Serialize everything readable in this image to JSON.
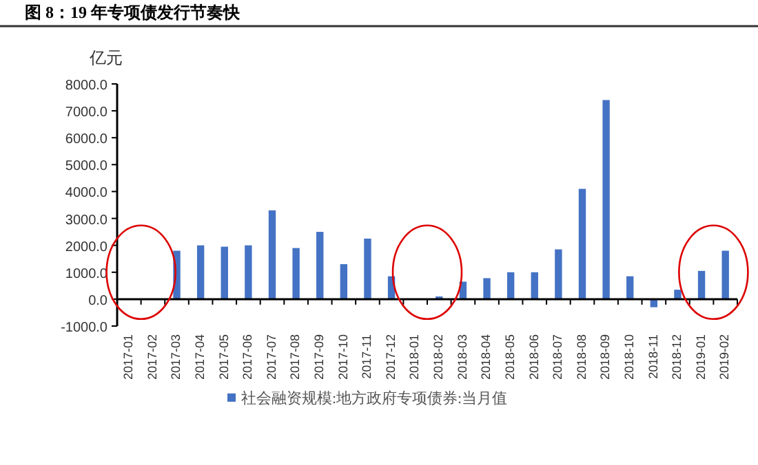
{
  "chart_data": {
    "type": "bar",
    "title": "图 8：19 年专项债发行节奏快",
    "ylabel": "亿元",
    "categories": [
      "2017-01",
      "2017-02",
      "2017-03",
      "2017-04",
      "2017-05",
      "2017-06",
      "2017-07",
      "2017-08",
      "2017-09",
      "2017-10",
      "2017-11",
      "2017-12",
      "2018-01",
      "2018-02",
      "2018-03",
      "2018-04",
      "2018-05",
      "2018-06",
      "2018-07",
      "2018-08",
      "2018-09",
      "2018-10",
      "2018-11",
      "2018-12",
      "2019-01",
      "2019-02"
    ],
    "series": [
      {
        "name": "社会融资规模:地方政府专项债券:当月值",
        "color": "#4472c4",
        "values": [
          0,
          0,
          1800,
          2000,
          1950,
          2000,
          3300,
          1900,
          2500,
          1300,
          2250,
          850,
          0,
          100,
          650,
          780,
          1000,
          1000,
          1850,
          4100,
          7400,
          850,
          -300,
          350,
          1050,
          1800
        ]
      }
    ],
    "ylim": [
      -1000,
      8000
    ],
    "yticks": [
      {
        "value": -1000,
        "label": "-1000.0"
      },
      {
        "value": 0,
        "label": "0.0"
      },
      {
        "value": 1000,
        "label": "1000.0"
      },
      {
        "value": 2000,
        "label": "2000.0"
      },
      {
        "value": 3000,
        "label": "3000.0"
      },
      {
        "value": 4000,
        "label": "4000.0"
      },
      {
        "value": 5000,
        "label": "5000.0"
      },
      {
        "value": 6000,
        "label": "6000.0"
      },
      {
        "value": 7000,
        "label": "7000.0"
      },
      {
        "value": 8000,
        "label": "8000.0"
      }
    ],
    "legend": "bottom"
  }
}
